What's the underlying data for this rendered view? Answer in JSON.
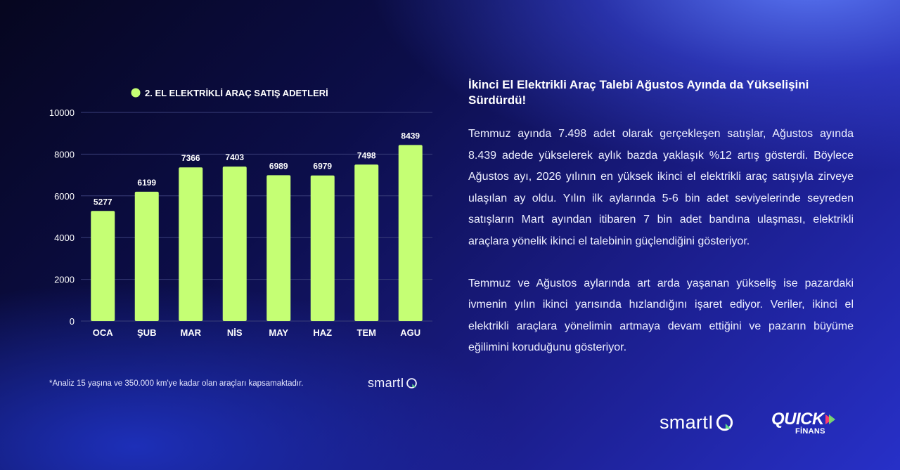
{
  "chart_data": {
    "type": "bar",
    "legend": "2. EL ELEKTRİKLİ ARAÇ SATIŞ ADETLERİ",
    "legend_position": "top",
    "categories": [
      "OCA",
      "ŞUB",
      "MAR",
      "NİS",
      "MAY",
      "HAZ",
      "TEM",
      "AGU"
    ],
    "values": [
      5277,
      6199,
      7366,
      7403,
      6989,
      6979,
      7498,
      8439
    ],
    "data_labels": [
      "5277",
      "6199",
      "7366",
      "7403",
      "6989",
      "6979",
      "7498",
      "8439"
    ],
    "yticks": [
      0,
      2000,
      4000,
      6000,
      8000,
      10000
    ],
    "ytick_labels": [
      "0",
      "2000",
      "4000",
      "6000",
      "8000",
      "10000"
    ],
    "ylim": [
      0,
      10000
    ],
    "grid": true,
    "bar_color": "#c5ff74"
  },
  "footnote": "*Analiz 15 yaşına ve 350.000 km'ye kadar olan araçları kapsamaktadır.",
  "article": {
    "title": "İkinci El Elektrikli Araç Talebi Ağustos Ayında da Yükselişini Sürdürdü!",
    "paragraph1": "Temmuz ayında 7.498 adet olarak gerçekleşen satışlar, Ağustos ayında 8.439 adede yükselerek aylık bazda yaklaşık %12 artış gösterdi. Böylece Ağustos ayı, 2026 yılının en yüksek ikinci el elektrikli araç satışıyla zirveye ulaşılan ay oldu. Yılın ilk aylarında 5-6 bin adet seviyelerinde seyreden satışların Mart ayından itibaren 7 bin adet bandına ulaşması, elektrikli araçlara yönelik ikinci el talebinin güçlendiğini gösteriyor.",
    "paragraph2": "Temmuz ve Ağustos aylarında art arda yaşanan yükseliş ise pazardaki ivmenin yılın ikinci yarısında hızlandığını işaret ediyor. Veriler, ikinci el elektrikli araçlara yönelimin artmaya devam ettiğini ve pazarın büyüme eğilimini koruduğunu gösteriyor."
  },
  "brands": {
    "smartiq_text": "smartI",
    "quick_text": "QUICK",
    "finans_text": "FİNANS"
  },
  "colors": {
    "accent_green": "#c5ff74",
    "text": "#ffffff",
    "grid": "#3a3f7a"
  },
  "icons": {
    "smartiq_q": "q-letter-with-leaf-icon",
    "quick_arrow": "arrow-right-icon",
    "legend_dot": "circle-icon"
  }
}
